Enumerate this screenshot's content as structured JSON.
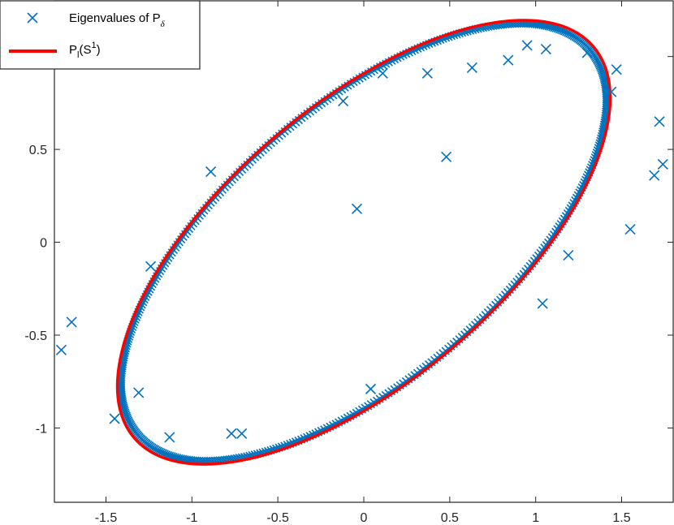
{
  "chart_data": {
    "type": "scatter",
    "title": "",
    "xlabel": "",
    "ylabel": "",
    "xlim": [
      -1.8,
      1.8
    ],
    "ylim": [
      -1.4,
      1.3
    ],
    "xticks": [
      -1.5,
      -1,
      -0.5,
      0,
      0.5,
      1,
      1.5
    ],
    "xtick_labels": [
      "-1.5",
      "-1",
      "-0.5",
      "0",
      "0.5",
      "1",
      "1.5"
    ],
    "yticks": [
      -1,
      -0.5,
      0,
      0.5,
      1
    ],
    "ytick_labels": [
      "-1",
      "-0.5",
      "0",
      "0.5",
      "1"
    ],
    "grid": false,
    "legend_position": "top-left",
    "legend": [
      {
        "label": "Eigenvalues of P",
        "subscript": "δ",
        "marker": "x",
        "color": "#0072BD"
      },
      {
        "label": "P",
        "subscript": "l",
        "suffix": "(S",
        "superscript": "1",
        "close": ")",
        "marker": "line",
        "color": "#FF0000"
      }
    ],
    "curve": {
      "name": "P_l(S^1)",
      "color": "#FF0000",
      "type": "ellipse",
      "center": [
        0,
        0
      ],
      "x_extent": [
        -1.78,
        1.8
      ],
      "y_extent": [
        -1.12,
        1.1
      ],
      "param_a": [
        1.405,
        0.58
      ],
      "param_b": [
        0.285,
        1.045
      ],
      "samples": 400
    },
    "ring": {
      "name": "Eigenvalues of P_δ (boundary cluster)",
      "color": "#0072BD",
      "count": 520,
      "scale": 0.985
    },
    "scatter_points": {
      "name": "Eigenvalues of P_δ (interior)",
      "color": "#0072BD",
      "points": [
        [
          -1.76,
          -0.58
        ],
        [
          -1.7,
          -0.43
        ],
        [
          -1.45,
          -0.95
        ],
        [
          -1.31,
          -0.81
        ],
        [
          -1.24,
          -0.13
        ],
        [
          -1.13,
          -1.05
        ],
        [
          -0.89,
          0.38
        ],
        [
          -0.77,
          -1.03
        ],
        [
          -0.71,
          -1.03
        ],
        [
          -0.12,
          0.76
        ],
        [
          -0.04,
          0.18
        ],
        [
          0.04,
          -0.79
        ],
        [
          0.11,
          0.91
        ],
        [
          0.37,
          0.91
        ],
        [
          0.48,
          0.46
        ],
        [
          0.63,
          0.94
        ],
        [
          0.84,
          0.98
        ],
        [
          0.95,
          1.06
        ],
        [
          1.04,
          -0.33
        ],
        [
          1.06,
          1.04
        ],
        [
          1.19,
          -0.07
        ],
        [
          1.3,
          1.02
        ],
        [
          1.44,
          0.81
        ],
        [
          1.47,
          0.93
        ],
        [
          1.55,
          0.07
        ],
        [
          1.69,
          0.36
        ],
        [
          1.72,
          0.65
        ],
        [
          1.74,
          0.42
        ]
      ]
    }
  }
}
